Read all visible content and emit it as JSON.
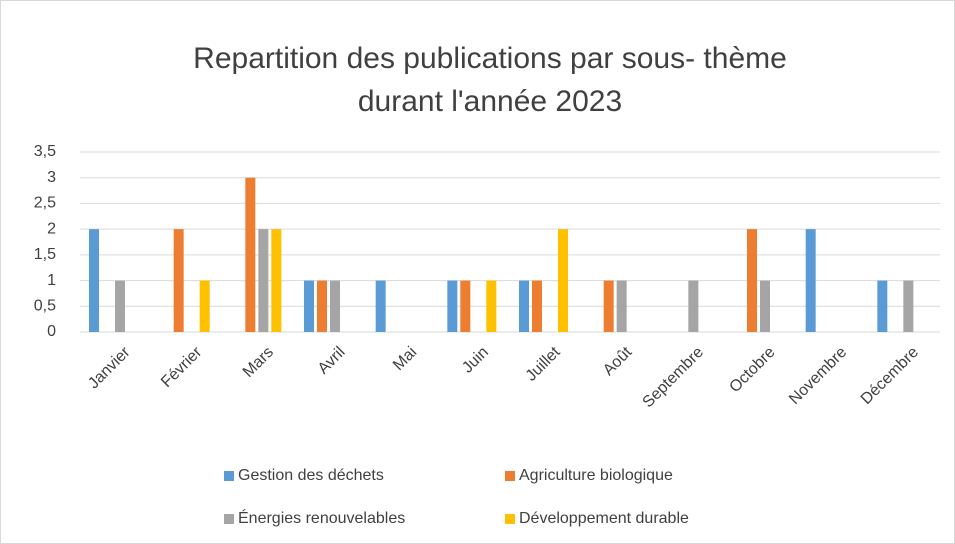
{
  "chart_data": {
    "type": "bar",
    "title": [
      "Repartition des publications par sous- thème",
      "durant l'année 2023"
    ],
    "categories": [
      "Janvier",
      "Février",
      "Mars",
      "Avril",
      "Mai",
      "Juin",
      "Juillet",
      "Août",
      "Septembre",
      "Octobre",
      "Novembre",
      "Décembre"
    ],
    "series": [
      {
        "name": "Gestion des déchets",
        "color": "#5b9bd5",
        "values": [
          2,
          0,
          0,
          1,
          1,
          1,
          1,
          0,
          0,
          0,
          2,
          1
        ]
      },
      {
        "name": "Agriculture biologique",
        "color": "#ed7d31",
        "values": [
          0,
          2,
          3,
          1,
          0,
          1,
          1,
          1,
          0,
          2,
          0,
          0
        ]
      },
      {
        "name": "Énergies renouvelables",
        "color": "#a5a5a5",
        "values": [
          1,
          0,
          2,
          1,
          0,
          0,
          0,
          1,
          1,
          1,
          0,
          1
        ]
      },
      {
        "name": "Développement durable",
        "color": "#ffc000",
        "values": [
          0,
          1,
          2,
          0,
          0,
          1,
          2,
          0,
          0,
          0,
          0,
          0
        ]
      }
    ],
    "ylim": [
      0,
      3.5
    ],
    "yticks": [
      0,
      {
        "value": 0.5,
        "label": "0,5"
      },
      1,
      {
        "value": 1.5,
        "label": "1,5"
      },
      2,
      {
        "value": 2.5,
        "label": "2,5"
      },
      3,
      {
        "value": 3.5,
        "label": "3,5"
      }
    ],
    "grid": true,
    "legend": "bottom"
  }
}
